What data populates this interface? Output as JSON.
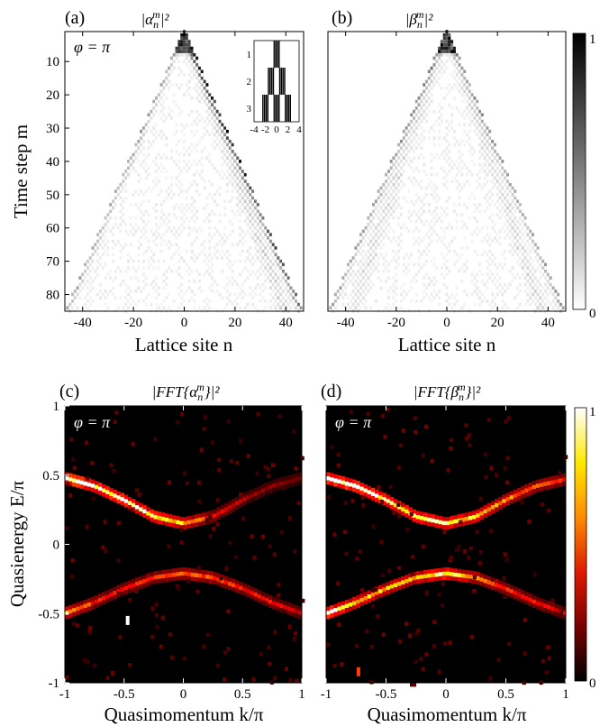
{
  "figure": {
    "panels": [
      {
        "id": "a",
        "label": "(a)",
        "title": "|α",
        "sub": "n",
        "sup": "m",
        "pow": "|²",
        "annotation": "φ = π",
        "annotation_color": "#000000"
      },
      {
        "id": "b",
        "label": "(b)",
        "title": "|β",
        "sub": "n",
        "sup": "m",
        "pow": "|²",
        "annotation": "",
        "annotation_color": "#000000"
      },
      {
        "id": "c",
        "label": "(c)",
        "title": "|FFT{α",
        "sub": "n",
        "sup": "m",
        "pow": "}|²",
        "annotation": "φ = π",
        "annotation_color": "#ffffff"
      },
      {
        "id": "d",
        "label": "(d)",
        "title": "|FFT{β",
        "sub": "n",
        "sup": "m",
        "pow": "}|²",
        "annotation": "φ = π",
        "annotation_color": "#ffffff"
      }
    ],
    "top_xlabel": "Lattice site n",
    "top_ylabel": "Time step m",
    "bottom_xlabel": "Quasimomentum k/π",
    "bottom_ylabel": "Quasienergy E/π",
    "colorbar_top": {
      "min_label": "0",
      "max_label": "1",
      "colors": [
        "#ffffff",
        "#000000"
      ]
    },
    "colorbar_bottom": {
      "min_label": "0",
      "max_label": "1",
      "colors": [
        "#000000",
        "#7a0000",
        "#e11a00",
        "#ff8c00",
        "#ffe800",
        "#ffffff"
      ]
    }
  },
  "chart_data": [
    {
      "type": "heatmap",
      "panel": "a",
      "xlabel": "Lattice site n",
      "ylabel": "Time step m",
      "xlim": [
        -47,
        47
      ],
      "ylim": [
        1,
        85
      ],
      "y_inverted": true,
      "xticks": [
        -40,
        -20,
        0,
        20,
        40
      ],
      "yticks": [
        10,
        20,
        30,
        40,
        50,
        60,
        70,
        80
      ],
      "colorscale": "gray",
      "vmin": 0,
      "vmax": 1,
      "features": [
        {
          "name": "light cone",
          "apex_x": 0,
          "apex_y": 1,
          "slope_sites_per_step": 0.55
        },
        {
          "name": "dominant right-moving beam",
          "slope_sites_per_step": 0.55,
          "strength": 0.85
        },
        {
          "name": "left-moving edge",
          "slope_sites_per_step": -0.55,
          "strength": 0.3
        }
      ],
      "inset": {
        "xlim": [
          -4,
          4
        ],
        "ylim": [
          0.5,
          3.5
        ],
        "xticks": [
          -4,
          -2,
          0,
          2,
          4
        ],
        "yticks": [
          1,
          2,
          3
        ],
        "rows": [
          {
            "m": 1,
            "bars_x": [
              0
            ]
          },
          {
            "m": 2,
            "bars_x": [
              -1,
              1
            ]
          },
          {
            "m": 3,
            "bars_x": [
              -2,
              0,
              2
            ]
          }
        ]
      }
    },
    {
      "type": "heatmap",
      "panel": "b",
      "xlabel": "Lattice site n",
      "xlim": [
        -47,
        47
      ],
      "ylim": [
        1,
        85
      ],
      "y_inverted": true,
      "xticks": [
        -40,
        -20,
        0,
        20,
        40
      ],
      "colorscale": "gray",
      "vmin": 0,
      "vmax": 1,
      "features": [
        {
          "name": "light cone",
          "apex_x": 0,
          "apex_y": 1,
          "slope_sites_per_step": 0.55
        },
        {
          "name": "symmetric spread",
          "strength": 0.3
        }
      ]
    },
    {
      "type": "heatmap",
      "panel": "c",
      "xlabel": "Quasimomentum k/π",
      "ylabel": "Quasienergy E/π",
      "xlim": [
        -1,
        1
      ],
      "ylim": [
        -1,
        1
      ],
      "xticks": [
        -1,
        -0.5,
        0,
        0.5,
        1
      ],
      "yticks": [
        -1,
        -0.5,
        0,
        0.5,
        1
      ],
      "colorscale": "hot",
      "vmin": 0,
      "vmax": 1,
      "bands": [
        {
          "name": "upper band",
          "k": [
            -1,
            -0.75,
            -0.5,
            -0.25,
            0,
            0.25,
            0.5,
            0.75,
            1
          ],
          "E": [
            0.48,
            0.42,
            0.32,
            0.2,
            0.15,
            0.2,
            0.32,
            0.42,
            0.48
          ],
          "intensity": [
            1.0,
            0.98,
            0.95,
            0.9,
            0.7,
            0.4,
            0.28,
            0.22,
            0.2
          ]
        },
        {
          "name": "lower band",
          "k": [
            -1,
            -0.75,
            -0.5,
            -0.25,
            0,
            0.25,
            0.5,
            0.75,
            1
          ],
          "E": [
            -0.5,
            -0.42,
            -0.32,
            -0.24,
            -0.21,
            -0.24,
            -0.32,
            -0.42,
            -0.5
          ],
          "intensity": [
            0.75,
            0.45,
            0.4,
            0.45,
            0.55,
            0.5,
            0.42,
            0.38,
            0.3
          ]
        }
      ],
      "spots": [
        {
          "k": -0.47,
          "E": -0.55,
          "intensity": 1.0
        }
      ]
    },
    {
      "type": "heatmap",
      "panel": "d",
      "xlabel": "Quasimomentum k/π",
      "xlim": [
        -1,
        1
      ],
      "ylim": [
        -1,
        1
      ],
      "xticks": [
        -1,
        -0.5,
        0,
        0.5,
        1
      ],
      "colorscale": "hot",
      "vmin": 0,
      "vmax": 1,
      "bands": [
        {
          "name": "upper band",
          "k": [
            -1,
            -0.75,
            -0.5,
            -0.25,
            0,
            0.25,
            0.5,
            0.75,
            1
          ],
          "E": [
            0.48,
            0.42,
            0.32,
            0.2,
            0.15,
            0.2,
            0.32,
            0.42,
            0.47
          ],
          "intensity": [
            1.0,
            0.98,
            0.95,
            0.92,
            0.85,
            0.75,
            0.6,
            0.5,
            0.42
          ]
        },
        {
          "name": "lower band",
          "k": [
            -1,
            -0.75,
            -0.5,
            -0.25,
            0,
            0.25,
            0.5,
            0.75,
            1
          ],
          "E": [
            -0.5,
            -0.42,
            -0.32,
            -0.24,
            -0.21,
            -0.24,
            -0.32,
            -0.42,
            -0.5
          ],
          "intensity": [
            1.0,
            0.75,
            0.7,
            0.65,
            0.95,
            0.6,
            0.45,
            0.4,
            0.35
          ]
        }
      ],
      "spots": [
        {
          "k": -0.73,
          "E": -0.92,
          "intensity": 0.5
        }
      ]
    }
  ]
}
